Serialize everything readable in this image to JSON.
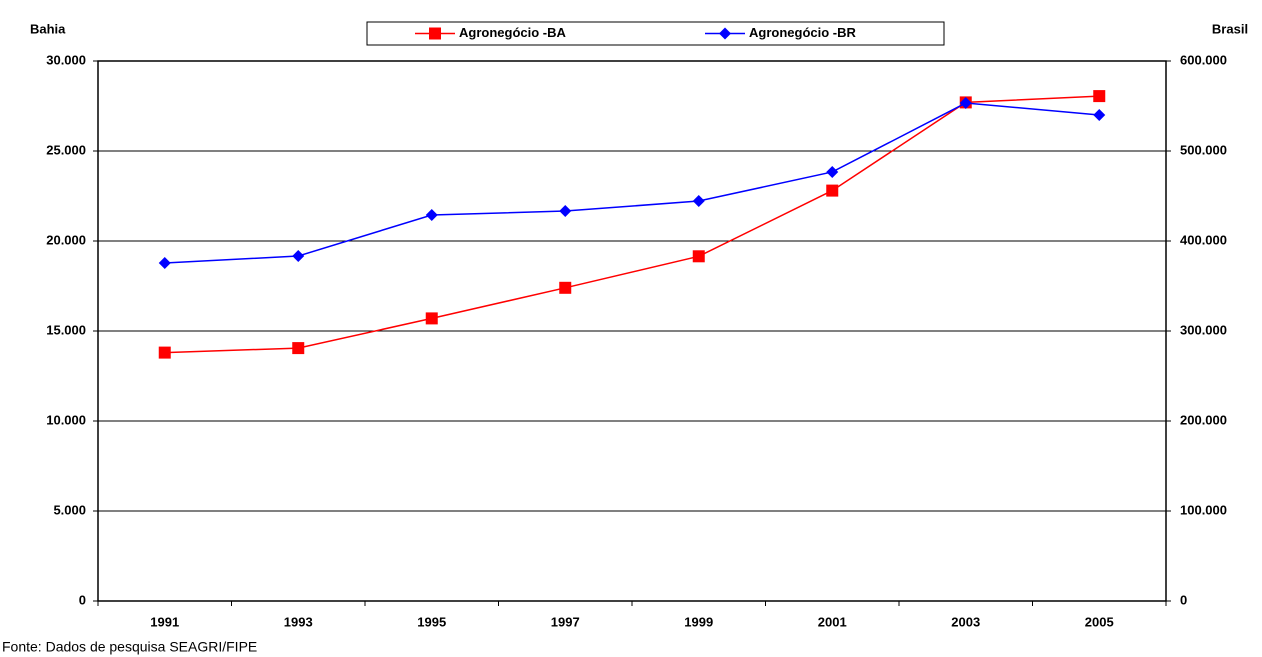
{
  "chart_data": {
    "type": "line",
    "y_label": "Bahia",
    "y2_label": "Brasil",
    "source": "Fonte: Dados de pesquisa SEAGRI/FIPE",
    "categories": [
      "1991",
      "1993",
      "1995",
      "1997",
      "1999",
      "2001",
      "2003",
      "2005"
    ],
    "series": [
      {
        "name": "Agronegócio -BA",
        "color": "#ff0000",
        "marker": "square",
        "values": [
          13800,
          14050,
          15700,
          17400,
          19150,
          22800,
          27700,
          28050
        ]
      },
      {
        "name": "Agronegócio -BR",
        "color": "#0000ff",
        "marker": "diamond",
        "axis": "y2",
        "values": [
          375600,
          383300,
          428900,
          433300,
          444400,
          476700,
          553300,
          540000
        ]
      }
    ],
    "ylim": [
      0,
      30000
    ],
    "yticks": [
      0,
      {
        "value": 5000,
        "label": "5.000"
      },
      {
        "value": 10000,
        "label": "10.000"
      },
      {
        "value": 15000,
        "label": "15.000"
      },
      {
        "value": 20000,
        "label": "20.000"
      },
      {
        "value": 25000,
        "label": "25.000"
      },
      {
        "value": 30000,
        "label": "30.000"
      }
    ],
    "y2lim": [
      0,
      600000
    ],
    "y2ticks": [
      0,
      {
        "value": 100000,
        "label": "100.000"
      },
      {
        "value": 200000,
        "label": "200.000"
      },
      {
        "value": 300000,
        "label": "300.000"
      },
      {
        "value": 400000,
        "label": "400.000"
      },
      {
        "value": 500000,
        "label": "500.000"
      },
      {
        "value": 600000,
        "label": "600.000"
      }
    ],
    "grid": true,
    "legend": "top"
  }
}
